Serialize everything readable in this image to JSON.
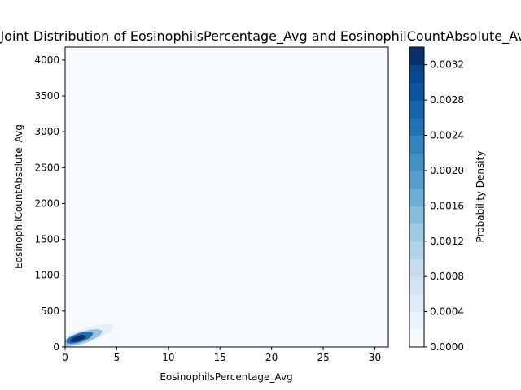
{
  "chart_data": {
    "type": "heatmap",
    "title": "d Joint Distribution of EosinophilsPercentage_Avg and EosinophilCountAbsolute_Avg",
    "xlabel": "EosinophilsPercentage_Avg",
    "ylabel": "EosinophilCountAbsolute_Avg",
    "xlim": [
      0,
      31.3
    ],
    "ylim": [
      0,
      4180
    ],
    "xticks": [
      "0",
      "5",
      "10",
      "15",
      "20",
      "25",
      "30"
    ],
    "yticks": [
      "0",
      "500",
      "1000",
      "1500",
      "2000",
      "2500",
      "3000",
      "3500",
      "4000"
    ],
    "grid": false,
    "density_peak": {
      "x": 1.4,
      "y": 130,
      "value": 0.0034
    },
    "colorbar": {
      "label": "Probability Density",
      "min": 0.0,
      "max": 0.0034,
      "levels": 17,
      "ticks": [
        "0.0000",
        "0.0004",
        "0.0008",
        "0.0012",
        "0.0016",
        "0.0020",
        "0.0024",
        "0.0028",
        "0.0032"
      ],
      "colors": [
        "#f7fbff",
        "#ebf3fb",
        "#dfecf7",
        "#d2e3f3",
        "#c6dbef",
        "#b2d2e8",
        "#9ecae1",
        "#84bcdb",
        "#6aaed6",
        "#56a0ce",
        "#4292c6",
        "#3383be",
        "#2171b5",
        "#1764ab",
        "#0b559f",
        "#08488e",
        "#08306b"
      ]
    }
  }
}
